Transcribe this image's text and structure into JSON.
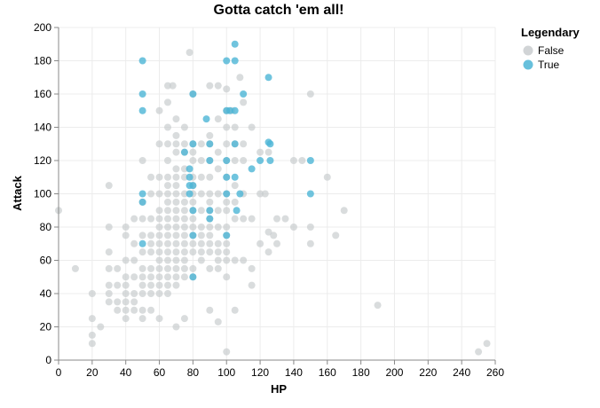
{
  "chart_data": {
    "type": "scatter",
    "title": "Gotta catch 'em all!",
    "xlabel": "HP",
    "ylabel": "Attack",
    "xlim": [
      0,
      260
    ],
    "ylim": [
      0,
      200
    ],
    "x_ticks": [
      "0",
      "20",
      "40",
      "60",
      "80",
      "100",
      "120",
      "140",
      "160",
      "180",
      "200",
      "220",
      "240",
      "260"
    ],
    "y_ticks": [
      "0",
      "20",
      "40",
      "60",
      "80",
      "100",
      "120",
      "140",
      "160",
      "180",
      "200"
    ],
    "grid": true,
    "legend": {
      "title": "Legendary",
      "position": "top-right",
      "entries": [
        {
          "label": "False",
          "color": "#c9cdcf"
        },
        {
          "label": "True",
          "color": "#4cb5d6"
        }
      ]
    },
    "series": [
      {
        "name": "False",
        "color": "#c9cdcf",
        "points": [
          [
            0,
            90
          ],
          [
            10,
            55
          ],
          [
            20,
            40
          ],
          [
            20,
            25
          ],
          [
            20,
            15
          ],
          [
            20,
            10
          ],
          [
            25,
            20
          ],
          [
            30,
            105
          ],
          [
            30,
            80
          ],
          [
            30,
            65
          ],
          [
            30,
            55
          ],
          [
            30,
            45
          ],
          [
            30,
            40
          ],
          [
            30,
            35
          ],
          [
            35,
            55
          ],
          [
            35,
            45
          ],
          [
            35,
            35
          ],
          [
            35,
            30
          ],
          [
            40,
            80
          ],
          [
            40,
            75
          ],
          [
            40,
            60
          ],
          [
            40,
            50
          ],
          [
            40,
            45
          ],
          [
            40,
            40
          ],
          [
            40,
            35
          ],
          [
            40,
            30
          ],
          [
            40,
            25
          ],
          [
            45,
            85
          ],
          [
            45,
            70
          ],
          [
            45,
            60
          ],
          [
            45,
            50
          ],
          [
            45,
            40
          ],
          [
            45,
            35
          ],
          [
            45,
            30
          ],
          [
            50,
            120
          ],
          [
            50,
            95
          ],
          [
            50,
            85
          ],
          [
            50,
            75
          ],
          [
            50,
            65
          ],
          [
            50,
            55
          ],
          [
            50,
            50
          ],
          [
            50,
            45
          ],
          [
            50,
            40
          ],
          [
            50,
            30
          ],
          [
            50,
            25
          ],
          [
            55,
            110
          ],
          [
            55,
            100
          ],
          [
            55,
            85
          ],
          [
            55,
            75
          ],
          [
            55,
            70
          ],
          [
            55,
            65
          ],
          [
            55,
            55
          ],
          [
            55,
            50
          ],
          [
            55,
            45
          ],
          [
            55,
            40
          ],
          [
            55,
            30
          ],
          [
            60,
            150
          ],
          [
            60,
            130
          ],
          [
            60,
            110
          ],
          [
            60,
            100
          ],
          [
            60,
            90
          ],
          [
            60,
            85
          ],
          [
            60,
            80
          ],
          [
            60,
            75
          ],
          [
            60,
            70
          ],
          [
            60,
            65
          ],
          [
            60,
            60
          ],
          [
            60,
            55
          ],
          [
            60,
            50
          ],
          [
            60,
            45
          ],
          [
            60,
            40
          ],
          [
            60,
            25
          ],
          [
            65,
            165
          ],
          [
            65,
            155
          ],
          [
            65,
            140
          ],
          [
            65,
            130
          ],
          [
            65,
            120
          ],
          [
            65,
            110
          ],
          [
            65,
            105
          ],
          [
            65,
            100
          ],
          [
            65,
            95
          ],
          [
            65,
            90
          ],
          [
            65,
            85
          ],
          [
            65,
            80
          ],
          [
            65,
            75
          ],
          [
            65,
            70
          ],
          [
            65,
            65
          ],
          [
            65,
            60
          ],
          [
            65,
            55
          ],
          [
            65,
            50
          ],
          [
            65,
            45
          ],
          [
            65,
            40
          ],
          [
            68,
            165
          ],
          [
            70,
            145
          ],
          [
            70,
            135
          ],
          [
            70,
            130
          ],
          [
            70,
            125
          ],
          [
            70,
            115
          ],
          [
            70,
            110
          ],
          [
            70,
            105
          ],
          [
            70,
            100
          ],
          [
            70,
            95
          ],
          [
            70,
            90
          ],
          [
            70,
            85
          ],
          [
            70,
            80
          ],
          [
            70,
            75
          ],
          [
            70,
            70
          ],
          [
            70,
            65
          ],
          [
            70,
            60
          ],
          [
            70,
            55
          ],
          [
            70,
            50
          ],
          [
            70,
            45
          ],
          [
            70,
            20
          ],
          [
            75,
            140
          ],
          [
            75,
            130
          ],
          [
            75,
            125
          ],
          [
            75,
            115
          ],
          [
            75,
            110
          ],
          [
            75,
            100
          ],
          [
            75,
            95
          ],
          [
            75,
            90
          ],
          [
            75,
            85
          ],
          [
            75,
            80
          ],
          [
            75,
            75
          ],
          [
            75,
            70
          ],
          [
            75,
            65
          ],
          [
            75,
            60
          ],
          [
            75,
            55
          ],
          [
            75,
            50
          ],
          [
            75,
            25
          ],
          [
            78,
            185
          ],
          [
            80,
            160
          ],
          [
            80,
            130
          ],
          [
            80,
            125
          ],
          [
            80,
            120
          ],
          [
            80,
            110
          ],
          [
            80,
            105
          ],
          [
            80,
            100
          ],
          [
            80,
            95
          ],
          [
            80,
            90
          ],
          [
            80,
            85
          ],
          [
            80,
            80
          ],
          [
            80,
            75
          ],
          [
            80,
            70
          ],
          [
            80,
            65
          ],
          [
            80,
            55
          ],
          [
            80,
            50
          ],
          [
            85,
            130
          ],
          [
            85,
            120
          ],
          [
            85,
            110
          ],
          [
            85,
            100
          ],
          [
            85,
            90
          ],
          [
            85,
            80
          ],
          [
            85,
            75
          ],
          [
            85,
            70
          ],
          [
            85,
            65
          ],
          [
            85,
            60
          ],
          [
            90,
            165
          ],
          [
            90,
            135
          ],
          [
            90,
            130
          ],
          [
            90,
            120
          ],
          [
            90,
            110
          ],
          [
            90,
            100
          ],
          [
            90,
            95
          ],
          [
            90,
            90
          ],
          [
            90,
            85
          ],
          [
            90,
            80
          ],
          [
            90,
            75
          ],
          [
            90,
            70
          ],
          [
            90,
            65
          ],
          [
            90,
            55
          ],
          [
            90,
            30
          ],
          [
            95,
            165
          ],
          [
            95,
            145
          ],
          [
            95,
            125
          ],
          [
            95,
            115
          ],
          [
            95,
            100
          ],
          [
            95,
            90
          ],
          [
            95,
            80
          ],
          [
            95,
            70
          ],
          [
            95,
            65
          ],
          [
            95,
            60
          ],
          [
            95,
            55
          ],
          [
            95,
            23
          ],
          [
            100,
            163
          ],
          [
            100,
            150
          ],
          [
            100,
            140
          ],
          [
            100,
            130
          ],
          [
            100,
            120
          ],
          [
            100,
            110
          ],
          [
            100,
            100
          ],
          [
            100,
            95
          ],
          [
            100,
            90
          ],
          [
            100,
            80
          ],
          [
            100,
            75
          ],
          [
            100,
            70
          ],
          [
            100,
            65
          ],
          [
            100,
            60
          ],
          [
            100,
            50
          ],
          [
            100,
            5
          ],
          [
            103,
            150
          ],
          [
            105,
            140
          ],
          [
            105,
            130
          ],
          [
            105,
            120
          ],
          [
            105,
            105
          ],
          [
            105,
            95
          ],
          [
            105,
            85
          ],
          [
            105,
            60
          ],
          [
            105,
            30
          ],
          [
            108,
            170
          ],
          [
            110,
            155
          ],
          [
            110,
            130
          ],
          [
            110,
            120
          ],
          [
            110,
            100
          ],
          [
            110,
            85
          ],
          [
            110,
            60
          ],
          [
            115,
            140
          ],
          [
            115,
            85
          ],
          [
            115,
            55
          ],
          [
            115,
            45
          ],
          [
            120,
            125
          ],
          [
            120,
            100
          ],
          [
            120,
            70
          ],
          [
            123,
            100
          ],
          [
            125,
            125
          ],
          [
            125,
            77
          ],
          [
            125,
            65
          ],
          [
            128,
            75
          ],
          [
            130,
            85
          ],
          [
            130,
            70
          ],
          [
            135,
            85
          ],
          [
            140,
            120
          ],
          [
            140,
            80
          ],
          [
            145,
            120
          ],
          [
            150,
            160
          ],
          [
            150,
            80
          ],
          [
            150,
            70
          ],
          [
            160,
            110
          ],
          [
            165,
            75
          ],
          [
            170,
            90
          ],
          [
            190,
            33
          ],
          [
            250,
            5
          ],
          [
            255,
            10
          ]
        ]
      },
      {
        "name": "True",
        "color": "#4cb5d6",
        "points": [
          [
            50,
            180
          ],
          [
            50,
            160
          ],
          [
            50,
            150
          ],
          [
            50,
            100
          ],
          [
            50,
            95
          ],
          [
            50,
            70
          ],
          [
            75,
            125
          ],
          [
            78,
            115
          ],
          [
            78,
            110
          ],
          [
            78,
            105
          ],
          [
            78,
            100
          ],
          [
            80,
            160
          ],
          [
            80,
            130
          ],
          [
            80,
            105
          ],
          [
            80,
            90
          ],
          [
            80,
            75
          ],
          [
            80,
            50
          ],
          [
            88,
            145
          ],
          [
            90,
            130
          ],
          [
            90,
            120
          ],
          [
            90,
            90
          ],
          [
            90,
            85
          ],
          [
            100,
            180
          ],
          [
            100,
            150
          ],
          [
            100,
            120
          ],
          [
            100,
            110
          ],
          [
            100,
            100
          ],
          [
            100,
            75
          ],
          [
            102,
            150
          ],
          [
            105,
            190
          ],
          [
            105,
            180
          ],
          [
            105,
            150
          ],
          [
            105,
            130
          ],
          [
            105,
            110
          ],
          [
            106,
            90
          ],
          [
            108,
            100
          ],
          [
            110,
            160
          ],
          [
            115,
            115
          ],
          [
            120,
            120
          ],
          [
            125,
            170
          ],
          [
            125,
            131
          ],
          [
            126,
            130
          ],
          [
            126,
            120
          ],
          [
            150,
            120
          ],
          [
            150,
            100
          ]
        ]
      }
    ]
  }
}
